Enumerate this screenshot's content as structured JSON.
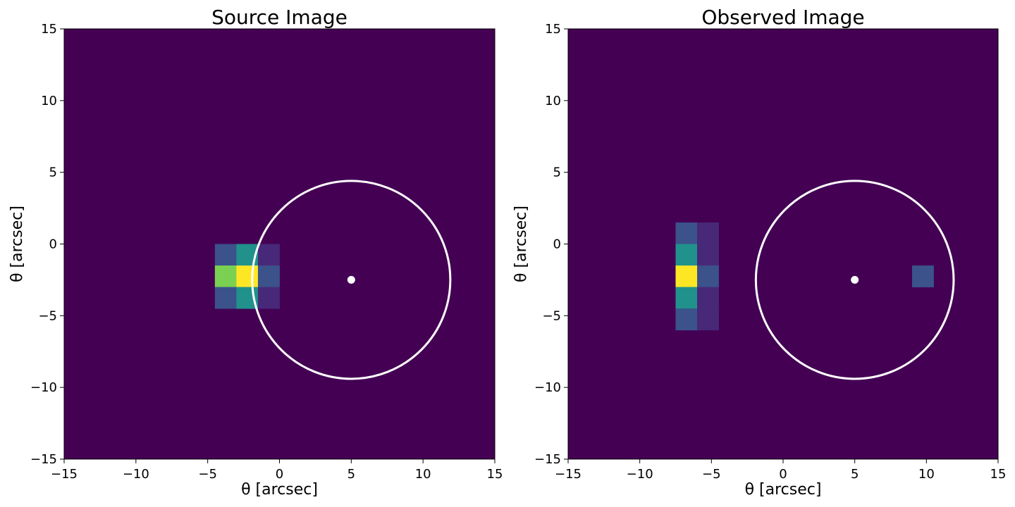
{
  "chart_data": [
    {
      "type": "heatmap",
      "title": "Source Image",
      "xlabel": "θ   [arcsec]",
      "ylabel": "θ   [arcsec]",
      "xlim": [
        -15,
        15
      ],
      "ylim": [
        -15,
        15
      ],
      "xticks": [
        "−15",
        "−10",
        "−5",
        "0",
        "5",
        "10",
        "15"
      ],
      "yticks": [
        "−15",
        "−10",
        "−5",
        "0",
        "5",
        "10",
        "15"
      ],
      "grid": false,
      "colormap": "viridis",
      "background_color": "#440154",
      "pixel_size": 1.5,
      "pixels": [
        {
          "x": -3.75,
          "y": -0.75,
          "color": "#3b528b"
        },
        {
          "x": -2.25,
          "y": -0.75,
          "color": "#21918c"
        },
        {
          "x": -0.75,
          "y": -0.75,
          "color": "#482878"
        },
        {
          "x": -3.75,
          "y": -2.25,
          "color": "#7ad151"
        },
        {
          "x": -2.25,
          "y": -2.25,
          "color": "#fde725"
        },
        {
          "x": -0.75,
          "y": -2.25,
          "color": "#3b528b"
        },
        {
          "x": -3.75,
          "y": -3.75,
          "color": "#3b528b"
        },
        {
          "x": -2.25,
          "y": -3.75,
          "color": "#21918c"
        },
        {
          "x": -0.75,
          "y": -3.75,
          "color": "#482878"
        }
      ],
      "circle": {
        "cx": 5,
        "cy": -2.5,
        "r": 6.9,
        "color": "#ffffff"
      },
      "center_point": {
        "x": 5,
        "y": -2.5,
        "color": "#ffffff"
      }
    },
    {
      "type": "heatmap",
      "title": "Observed Image",
      "xlabel": "θ   [arcsec]",
      "ylabel": "θ   [arcsec]",
      "xlim": [
        -15,
        15
      ],
      "ylim": [
        -15,
        15
      ],
      "xticks": [
        "−15",
        "−10",
        "−5",
        "0",
        "5",
        "10",
        "15"
      ],
      "yticks": [
        "−15",
        "−10",
        "−5",
        "0",
        "5",
        "10",
        "15"
      ],
      "grid": false,
      "colormap": "viridis",
      "background_color": "#440154",
      "pixel_size": 1.5,
      "pixels": [
        {
          "x": -6.75,
          "y": 0.75,
          "color": "#3b528b"
        },
        {
          "x": -5.25,
          "y": 0.75,
          "color": "#482878"
        },
        {
          "x": -6.75,
          "y": -0.75,
          "color": "#21918c"
        },
        {
          "x": -5.25,
          "y": -0.75,
          "color": "#482878"
        },
        {
          "x": -6.75,
          "y": -2.25,
          "color": "#fde725"
        },
        {
          "x": -5.25,
          "y": -2.25,
          "color": "#3b528b"
        },
        {
          "x": -6.75,
          "y": -3.75,
          "color": "#21918c"
        },
        {
          "x": -5.25,
          "y": -3.75,
          "color": "#482878"
        },
        {
          "x": -6.75,
          "y": -5.25,
          "color": "#3b528b"
        },
        {
          "x": -5.25,
          "y": -5.25,
          "color": "#482878"
        },
        {
          "x": 9.75,
          "y": -2.25,
          "color": "#3b528b"
        }
      ],
      "circle": {
        "cx": 5,
        "cy": -2.5,
        "r": 6.9,
        "color": "#ffffff"
      },
      "center_point": {
        "x": 5,
        "y": -2.5,
        "color": "#ffffff"
      }
    }
  ]
}
